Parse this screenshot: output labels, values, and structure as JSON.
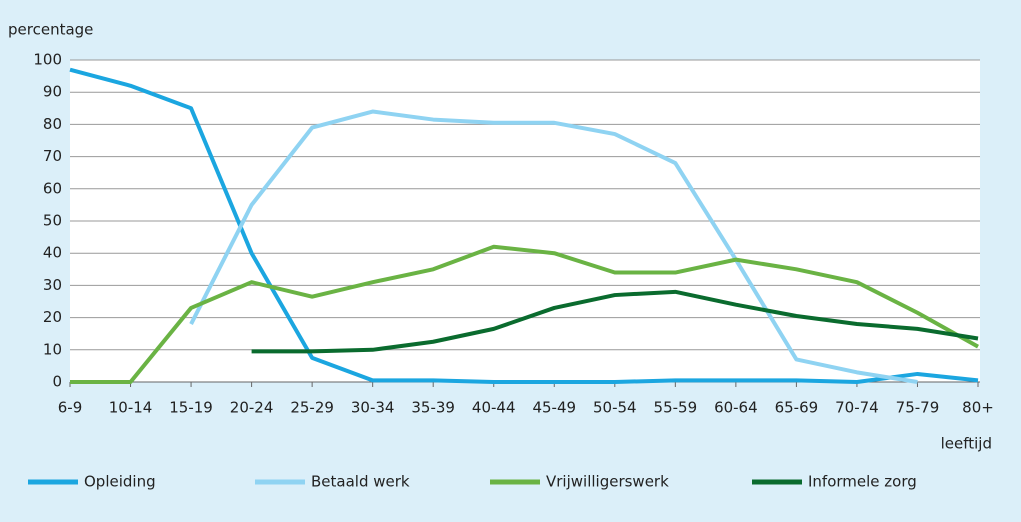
{
  "chart_data": {
    "type": "line",
    "y_label": "percentage",
    "x_label": "leeftijd",
    "categories": [
      "6-9",
      "10-14",
      "15-19",
      "20-24",
      "25-29",
      "30-34",
      "35-39",
      "40-44",
      "45-49",
      "50-54",
      "55-59",
      "60-64",
      "65-69",
      "70-74",
      "75-79",
      "80+"
    ],
    "series": [
      {
        "name": "Opleiding",
        "color": "#1ba6e0",
        "values": [
          97,
          92,
          85,
          40,
          7.5,
          0.5,
          0.5,
          0,
          0,
          0,
          0.5,
          0.5,
          0.5,
          0,
          2.5,
          0.5
        ]
      },
      {
        "name": "Betaald werk",
        "color": "#8fd3f2",
        "values": [
          null,
          null,
          18,
          55,
          79,
          84,
          81.5,
          80.5,
          80.5,
          77,
          68,
          38,
          7,
          3,
          0,
          null
        ]
      },
      {
        "name": "Vrijwilligerswerk",
        "color": "#6ab344",
        "values": [
          0,
          0,
          23,
          31,
          26.5,
          31,
          35,
          42,
          40,
          34,
          34,
          38,
          35,
          31,
          21.5,
          11
        ]
      },
      {
        "name": "Informele zorg",
        "color": "#0a6b2e",
        "values": [
          null,
          null,
          null,
          9.5,
          9.5,
          10,
          12.5,
          16.5,
          23,
          27,
          28,
          24,
          20.5,
          18,
          16.5,
          13.5
        ]
      }
    ],
    "ylim": [
      0,
      100
    ],
    "yticks": [
      0,
      10,
      20,
      30,
      40,
      50,
      60,
      70,
      80,
      90,
      100
    ],
    "grid": true
  }
}
